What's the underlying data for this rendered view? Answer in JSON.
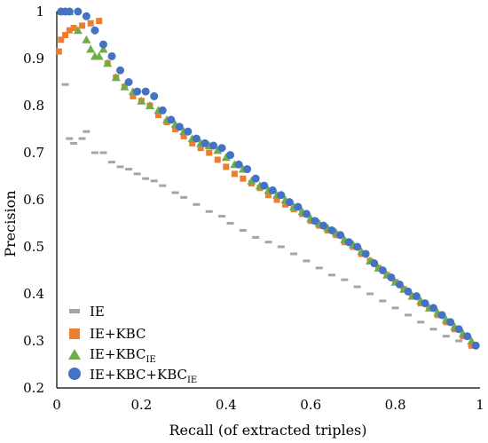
{
  "chart_data": {
    "type": "scatter",
    "xlabel": "Recall (of extracted triples)",
    "ylabel": "Precision",
    "xlim": [
      0,
      1
    ],
    "ylim": [
      0.2,
      1
    ],
    "x_ticks": [
      "0",
      "0.2",
      "0.4",
      "0.6",
      "0.8",
      "1"
    ],
    "y_ticks": [
      "0.2",
      "0.3",
      "0.4",
      "0.5",
      "0.6",
      "0.7",
      "0.8",
      "0.9",
      "1"
    ],
    "legend": {
      "position": "bottom-left"
    },
    "series": [
      {
        "name": "IE",
        "color": "#a5a5a5",
        "marker": "dash",
        "x": [
          0.02,
          0.03,
          0.04,
          0.06,
          0.07,
          0.09,
          0.11,
          0.13,
          0.15,
          0.17,
          0.19,
          0.21,
          0.23,
          0.25,
          0.28,
          0.3,
          0.33,
          0.36,
          0.39,
          0.41,
          0.44,
          0.47,
          0.5,
          0.53,
          0.56,
          0.59,
          0.62,
          0.65,
          0.68,
          0.71,
          0.74,
          0.77,
          0.8,
          0.83,
          0.86,
          0.89,
          0.92,
          0.95,
          0.98
        ],
        "y": [
          0.845,
          0.73,
          0.72,
          0.73,
          0.745,
          0.7,
          0.7,
          0.68,
          0.67,
          0.665,
          0.655,
          0.645,
          0.64,
          0.63,
          0.615,
          0.605,
          0.59,
          0.575,
          0.565,
          0.55,
          0.535,
          0.52,
          0.51,
          0.5,
          0.485,
          0.47,
          0.455,
          0.44,
          0.43,
          0.415,
          0.4,
          0.385,
          0.37,
          0.355,
          0.34,
          0.325,
          0.31,
          0.3,
          0.29
        ]
      },
      {
        "name": "IE+KBC",
        "color": "#ed7d31",
        "marker": "square",
        "x": [
          0.005,
          0.01,
          0.02,
          0.03,
          0.04,
          0.06,
          0.08,
          0.1,
          0.12,
          0.14,
          0.16,
          0.18,
          0.2,
          0.22,
          0.24,
          0.26,
          0.28,
          0.3,
          0.32,
          0.34,
          0.36,
          0.38,
          0.4,
          0.42,
          0.44,
          0.46,
          0.48,
          0.5,
          0.52,
          0.54,
          0.56,
          0.58,
          0.6,
          0.62,
          0.64,
          0.66,
          0.68,
          0.7,
          0.72,
          0.74,
          0.76,
          0.78,
          0.8,
          0.82,
          0.84,
          0.86,
          0.88,
          0.9,
          0.92,
          0.94,
          0.96,
          0.98
        ],
        "y": [
          0.915,
          0.94,
          0.95,
          0.96,
          0.965,
          0.97,
          0.975,
          0.98,
          0.89,
          0.86,
          0.84,
          0.82,
          0.81,
          0.8,
          0.78,
          0.765,
          0.75,
          0.735,
          0.72,
          0.71,
          0.7,
          0.685,
          0.67,
          0.655,
          0.645,
          0.635,
          0.625,
          0.61,
          0.6,
          0.59,
          0.58,
          0.57,
          0.555,
          0.545,
          0.535,
          0.525,
          0.51,
          0.5,
          0.485,
          0.47,
          0.455,
          0.44,
          0.425,
          0.41,
          0.395,
          0.38,
          0.37,
          0.355,
          0.34,
          0.325,
          0.31,
          0.29
        ]
      },
      {
        "name": "IE+KBC_IE",
        "color": "#70ad47",
        "marker": "triangle",
        "x": [
          0.01,
          0.02,
          0.03,
          0.05,
          0.07,
          0.08,
          0.09,
          0.1,
          0.11,
          0.12,
          0.14,
          0.16,
          0.18,
          0.2,
          0.22,
          0.24,
          0.26,
          0.28,
          0.3,
          0.32,
          0.34,
          0.36,
          0.38,
          0.4,
          0.42,
          0.44,
          0.46,
          0.48,
          0.5,
          0.52,
          0.54,
          0.56,
          0.58,
          0.6,
          0.62,
          0.64,
          0.66,
          0.68,
          0.7,
          0.72,
          0.74,
          0.76,
          0.78,
          0.8,
          0.82,
          0.84,
          0.86,
          0.88,
          0.9,
          0.92,
          0.94,
          0.96,
          0.98
        ],
        "y": [
          1,
          1,
          1,
          0.96,
          0.94,
          0.92,
          0.905,
          0.905,
          0.92,
          0.89,
          0.86,
          0.84,
          0.83,
          0.81,
          0.8,
          0.79,
          0.77,
          0.76,
          0.745,
          0.73,
          0.72,
          0.715,
          0.705,
          0.69,
          0.675,
          0.665,
          0.64,
          0.63,
          0.62,
          0.61,
          0.6,
          0.585,
          0.575,
          0.56,
          0.55,
          0.54,
          0.53,
          0.515,
          0.505,
          0.49,
          0.47,
          0.455,
          0.44,
          0.425,
          0.41,
          0.395,
          0.385,
          0.37,
          0.36,
          0.345,
          0.33,
          0.315,
          0.3
        ]
      },
      {
        "name": "IE+KBC+KBC_IE",
        "color": "#4472c4",
        "marker": "circle",
        "x": [
          0.01,
          0.02,
          0.03,
          0.05,
          0.07,
          0.09,
          0.11,
          0.13,
          0.15,
          0.17,
          0.19,
          0.21,
          0.23,
          0.25,
          0.27,
          0.29,
          0.31,
          0.33,
          0.35,
          0.37,
          0.39,
          0.41,
          0.43,
          0.45,
          0.47,
          0.49,
          0.51,
          0.53,
          0.55,
          0.57,
          0.59,
          0.61,
          0.63,
          0.65,
          0.67,
          0.69,
          0.71,
          0.73,
          0.75,
          0.77,
          0.79,
          0.81,
          0.83,
          0.85,
          0.87,
          0.89,
          0.91,
          0.93,
          0.95,
          0.97,
          0.99
        ],
        "y": [
          1,
          1,
          1,
          1,
          0.99,
          0.96,
          0.93,
          0.905,
          0.875,
          0.85,
          0.83,
          0.83,
          0.82,
          0.79,
          0.77,
          0.755,
          0.745,
          0.73,
          0.72,
          0.715,
          0.71,
          0.695,
          0.675,
          0.665,
          0.645,
          0.63,
          0.62,
          0.61,
          0.595,
          0.585,
          0.57,
          0.555,
          0.545,
          0.535,
          0.525,
          0.51,
          0.5,
          0.485,
          0.465,
          0.45,
          0.435,
          0.42,
          0.405,
          0.395,
          0.38,
          0.37,
          0.355,
          0.34,
          0.325,
          0.31,
          0.29
        ]
      }
    ]
  },
  "legend_labels": [
    {
      "main": "IE",
      "sub": ""
    },
    {
      "main": "IE+KBC",
      "sub": ""
    },
    {
      "main": "IE+KBC",
      "sub": "IE"
    },
    {
      "main": "IE+KBC+KBC",
      "sub": "IE"
    }
  ]
}
